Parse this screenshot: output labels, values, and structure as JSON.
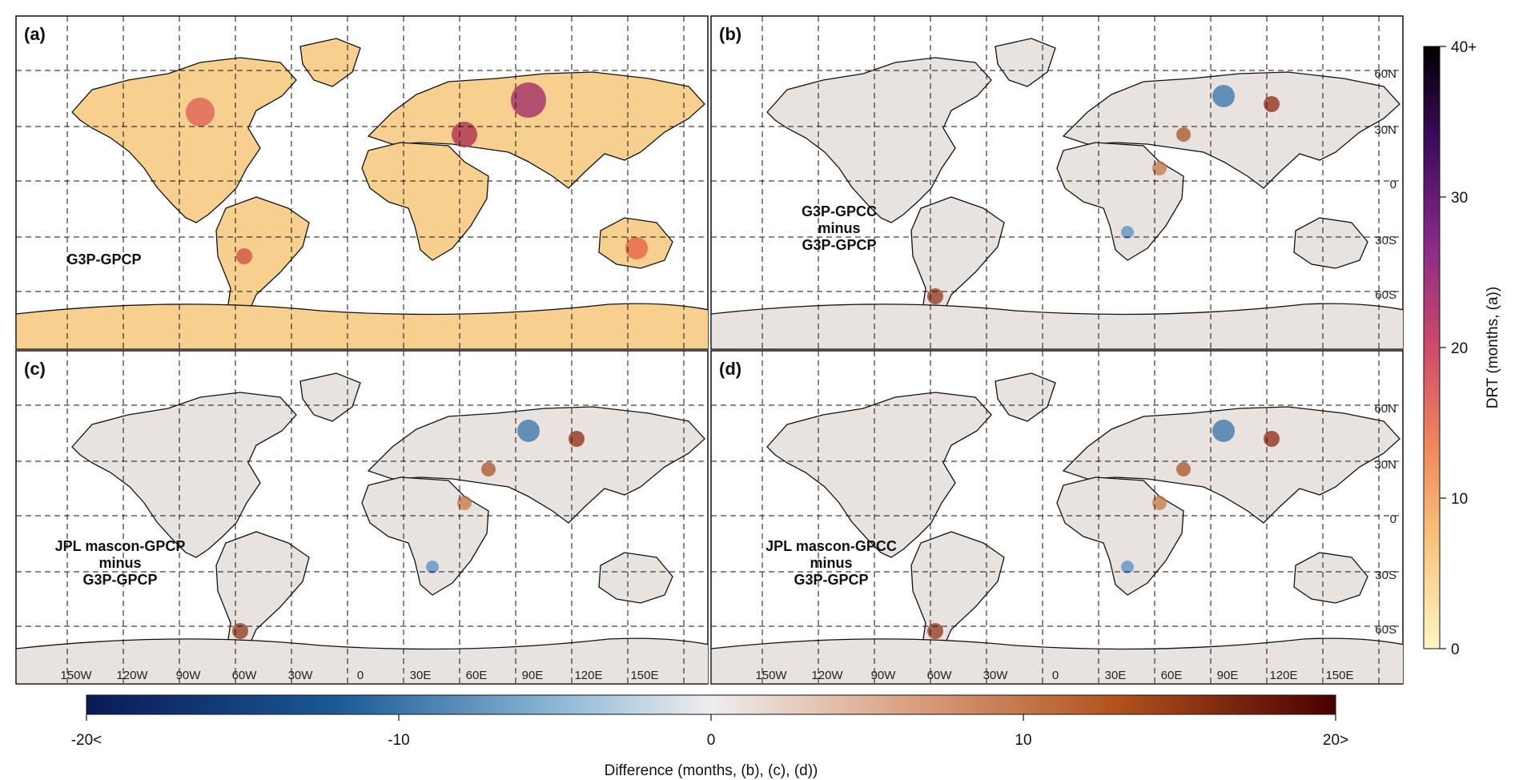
{
  "panels": [
    {
      "id": "a",
      "label": "(a)",
      "title_lines": [
        "G3P-GPCP"
      ],
      "kind": "drt"
    },
    {
      "id": "b",
      "label": "(b)",
      "title_lines": [
        "G3P-GPCC",
        "minus",
        "G3P-GPCP"
      ],
      "kind": "diff"
    },
    {
      "id": "c",
      "label": "(c)",
      "title_lines": [
        "JPL mascon-GPCP",
        "minus",
        "G3P-GPCP"
      ],
      "kind": "diff"
    },
    {
      "id": "d",
      "label": "(d)",
      "title_lines": [
        "JPL mascon-GPCC",
        "minus",
        "G3P-GPCP"
      ],
      "kind": "diff"
    }
  ],
  "lon_ticks": [
    "150W",
    "120W",
    "90W",
    "60W",
    "30W",
    "0",
    "30E",
    "60E",
    "90E",
    "120E",
    "150E"
  ],
  "lat_ticks": [
    "60N",
    "30N",
    "0",
    "30S",
    "60S"
  ],
  "drt_colorbar": {
    "title": "DRT (months, (a))",
    "ticks": [
      "0",
      "10",
      "20",
      "30",
      "40+"
    ],
    "colors": [
      "#fdf6c3",
      "#f9c77f",
      "#f08a5a",
      "#d04a6a",
      "#8a2a8a",
      "#3a0a5a",
      "#000000"
    ]
  },
  "diff_colorbar": {
    "title": "Difference (months, (b), (c), (d))",
    "ticks": [
      "-20<",
      "-10",
      "0",
      "10",
      "20>"
    ],
    "colors": [
      "#0a1a55",
      "#1a5a96",
      "#8fb9d6",
      "#eeeeee",
      "#dba587",
      "#b4541e",
      "#4a0000"
    ]
  }
}
